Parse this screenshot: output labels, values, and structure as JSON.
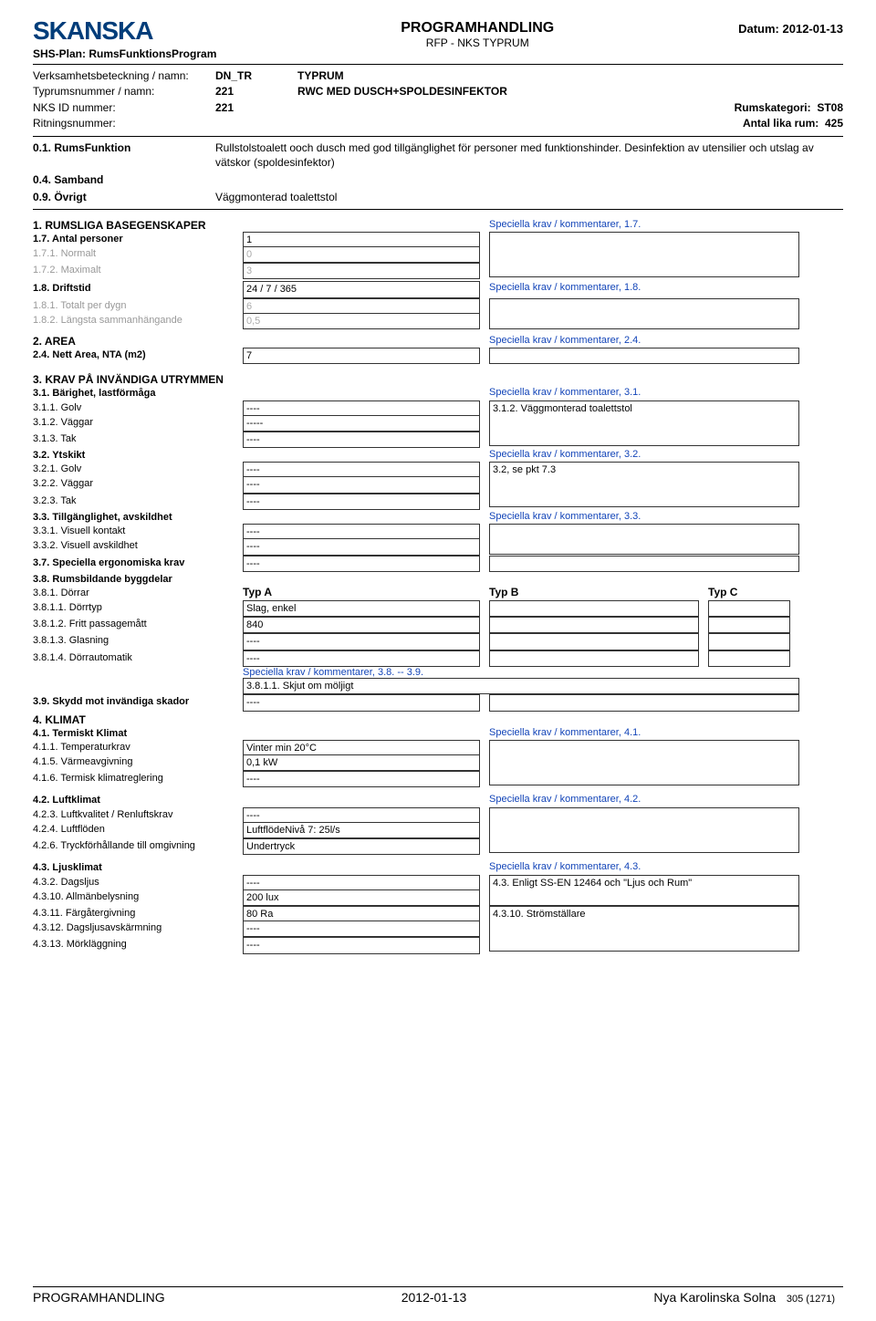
{
  "header": {
    "logo": "SKANSKA",
    "title": "PROGRAMHANDLING",
    "subtitle": "RFP -  NKS TYPRUM",
    "date_label": "Datum: ",
    "date": "2012-01-13",
    "plan": "SHS-Plan: RumsFunktionsProgram"
  },
  "meta": {
    "rows": [
      {
        "lbl": "Verksamhetsbeteckning / namn:",
        "v1": "DN_TR",
        "v2": "TYPRUM"
      },
      {
        "lbl": "Typrumsnummer / namn:",
        "v1": "221",
        "v2": "RWC MED DUSCH+SPOLDESINFEKTOR"
      },
      {
        "lbl": "NKS ID nummer:",
        "v1": "221",
        "v2": "",
        "right_lbl": "Rumskategori:",
        "right_val": "ST08"
      },
      {
        "lbl": "Ritningsnummer:",
        "v1": "",
        "v2": "",
        "right_lbl": "Antal lika rum:",
        "right_val": "425"
      }
    ],
    "desc": [
      {
        "lbl": "0.1. RumsFunktion",
        "txt": "Rullstolstoalett ooch dusch med god tillgänglighet för personer med funktionshinder. Desinfektion av utensilier och utslag av vätskor (spoldesinfektor)"
      },
      {
        "lbl": "0.4. Samband",
        "txt": ""
      },
      {
        "lbl": "0.9. Övrigt",
        "txt": "Väggmonterad toalettstol"
      }
    ]
  },
  "s1": {
    "title": "1. RUMSLIGA BASEGENSKAPER",
    "kom": "Speciella krav / kommentarer, 1.7.",
    "rows": [
      {
        "lbl": "1.7. Antal personer",
        "bold": true,
        "val": "1",
        "gray": false
      },
      {
        "lbl": "1.7.1. Normalt",
        "bold": false,
        "val": "0",
        "gray": true
      },
      {
        "lbl": "1.7.2. Maximalt",
        "bold": false,
        "val": "3",
        "gray": true
      }
    ],
    "r18": {
      "lbl": "1.8. Driftstid",
      "val": "24 / 7 / 365",
      "kom": "Speciella krav / kommentarer, 1.8."
    },
    "rows2": [
      {
        "lbl": "1.8.1. Totalt per dygn",
        "val": "6",
        "gray": true
      },
      {
        "lbl": "1.8.2. Längsta sammanhängande",
        "val": "0,5",
        "gray": true
      }
    ]
  },
  "s2": {
    "title": "2. AREA",
    "kom": "Speciella krav / kommentarer, 2.4.",
    "row": {
      "lbl": "2.4. Nett Area, NTA (m2)",
      "val": "7"
    }
  },
  "s3": {
    "title": "3. KRAV PÅ INVÄNDIGA UTRYMMEN",
    "g31": {
      "head": "3.1. Bärighet, lastförmåga",
      "kom": "Speciella krav / kommentarer, 3.1.",
      "rows": [
        {
          "lbl": "3.1.1. Golv",
          "val": "----"
        },
        {
          "lbl": "3.1.2. Väggar",
          "val": "-----"
        },
        {
          "lbl": "3.1.3. Tak",
          "val": "----"
        }
      ],
      "com": "3.1.2. Väggmonterad toalettstol"
    },
    "g32": {
      "head": "3.2. Ytskikt",
      "kom": "Speciella krav / kommentarer, 3.2.",
      "rows": [
        {
          "lbl": "3.2.1. Golv",
          "val": "----"
        },
        {
          "lbl": "3.2.2. Väggar",
          "val": "----"
        },
        {
          "lbl": "3.2.3. Tak",
          "val": "----"
        }
      ],
      "com": "3.2, se pkt 7.3"
    },
    "g33": {
      "head": "3.3. Tillgänglighet, avskildhet",
      "kom": "Speciella krav / kommentarer, 3.3.",
      "rows": [
        {
          "lbl": "3.3.1. Visuell kontakt",
          "val": "----"
        },
        {
          "lbl": "3.3.2. Visuell avskildhet",
          "val": "----"
        }
      ]
    },
    "g37": {
      "lbl": "3.7. Speciella ergonomiska krav",
      "val": "----"
    },
    "g38": {
      "head": "3.8. Rumsbildande byggdelar",
      "door_hdr": {
        "lbl": "3.8.1. Dörrar",
        "a": "Typ A",
        "b": "Typ B",
        "c": "Typ C"
      },
      "rows": [
        {
          "lbl": "3.8.1.1. Dörrtyp",
          "a": "Slag, enkel"
        },
        {
          "lbl": "3.8.1.2. Fritt passagemått",
          "a": "840"
        },
        {
          "lbl": "3.8.1.3. Glasning",
          "a": "----"
        },
        {
          "lbl": "3.8.1.4. Dörrautomatik",
          "a": "----"
        }
      ],
      "kom": "Speciella krav / kommentarer, 3.8. -- 3.9.",
      "note": "3.8.1.1. Skjut om möljigt"
    },
    "g39": {
      "lbl": "3.9. Skydd mot invändiga skador",
      "val": "----"
    }
  },
  "s4": {
    "title": "4. KLIMAT",
    "g41": {
      "head": "4.1. Termiskt Klimat",
      "kom": "Speciella krav / kommentarer, 4.1.",
      "rows": [
        {
          "lbl": "4.1.1. Temperaturkrav",
          "val": "Vinter min 20°C"
        },
        {
          "lbl": "4.1.5. Värmeavgivning",
          "val": "0,1 kW"
        },
        {
          "lbl": "4.1.6. Termisk klimatreglering",
          "val": "----"
        }
      ]
    },
    "g42": {
      "head": "4.2. Luftklimat",
      "kom": "Speciella krav / kommentarer, 4.2.",
      "rows": [
        {
          "lbl": "4.2.3. Luftkvalitet / Renluftskrav",
          "val": "----"
        },
        {
          "lbl": "4.2.4. Luftflöden",
          "val": "LuftflödeNivå 7: 25l/s"
        },
        {
          "lbl": "4.2.6. Tryckförhållande till omgivning",
          "val": "Undertryck"
        }
      ]
    },
    "g43": {
      "head": "4.3. Ljusklimat",
      "kom": "Speciella krav / kommentarer, 4.3.",
      "rows": [
        {
          "lbl": "4.3.2. Dagsljus",
          "val": "----"
        },
        {
          "lbl": "4.3.10. Allmänbelysning",
          "val": "200 lux"
        },
        {
          "lbl": "4.3.11. Färgåtergivning",
          "val": "80 Ra"
        },
        {
          "lbl": "4.3.12. Dagsljusavskärmning",
          "val": "----"
        },
        {
          "lbl": "4.3.13. Mörkläggning",
          "val": "----"
        }
      ],
      "com1": "4.3. Enligt SS-EN 12464 och \"Ljus och Rum\"",
      "com2": "4.3.10. Strömställare"
    }
  },
  "footer": {
    "left": "PROGRAMHANDLING",
    "center": "2012-01-13",
    "right": "Nya Karolinska Solna",
    "page": "305 (1271)"
  }
}
